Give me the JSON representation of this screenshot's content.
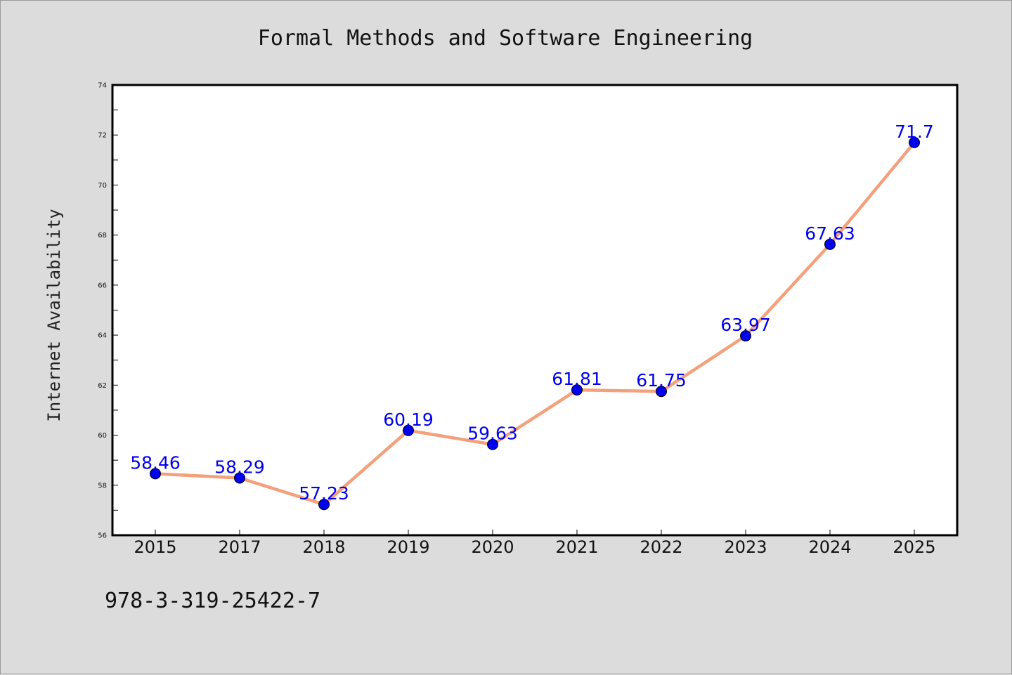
{
  "chart_data": {
    "type": "line",
    "title": "Formal Methods and Software Engineering",
    "xlabel": "",
    "ylabel": "Internet Availability",
    "categories": [
      "2015",
      "2017",
      "2018",
      "2019",
      "2020",
      "2021",
      "2022",
      "2023",
      "2024",
      "2025"
    ],
    "series": [
      {
        "values": [
          58.46,
          58.29,
          57.23,
          60.19,
          59.63,
          61.81,
          61.75,
          63.97,
          67.63,
          71.7
        ],
        "labels": [
          "58.46",
          "58.29",
          "57.23",
          "60.19",
          "59.63",
          "61.81",
          "61.75",
          "63.97",
          "67.63",
          "71.7"
        ],
        "line_color": "#f4a07c",
        "marker_color": "#0000ee",
        "label_color": "#0000ee"
      }
    ],
    "ylim": [
      56,
      74
    ],
    "yticks": [
      "56",
      "58",
      "60",
      "62",
      "64",
      "66",
      "68",
      "70",
      "72",
      "74"
    ],
    "grid": false,
    "legend": "none"
  },
  "footer": {
    "text": "978-3-319-25422-7"
  },
  "colors": {
    "background": "#dcdcdc",
    "plot_background": "#ffffff",
    "frame": "#000000"
  }
}
